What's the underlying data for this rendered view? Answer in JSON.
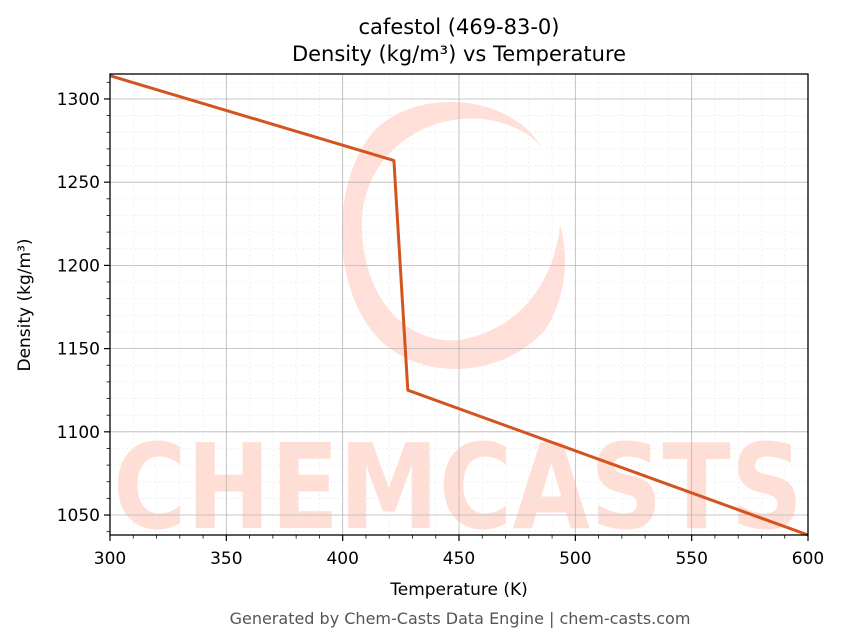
{
  "chart_data": {
    "type": "line",
    "title": "cafestol (469-83-0)",
    "subtitle": "Density (kg/m³) vs Temperature",
    "xlabel": "Temperature (K)",
    "ylabel": "Density (kg/m³)",
    "xlim": [
      300,
      600
    ],
    "ylim": [
      1038,
      1315
    ],
    "x_ticks": [
      300,
      350,
      400,
      450,
      500,
      550,
      600
    ],
    "y_ticks": [
      1050,
      1100,
      1150,
      1200,
      1250,
      1300
    ],
    "grid": true,
    "series": [
      {
        "color": "#d4541f",
        "x": [
          300,
          422,
          428,
          600
        ],
        "y": [
          1314,
          1263,
          1125,
          1038
        ]
      }
    ]
  },
  "watermark": {
    "text": "CHEMCASTS",
    "color": "#ffd9d0"
  },
  "footer": "Generated by Chem-Casts Data Engine | chem-casts.com"
}
